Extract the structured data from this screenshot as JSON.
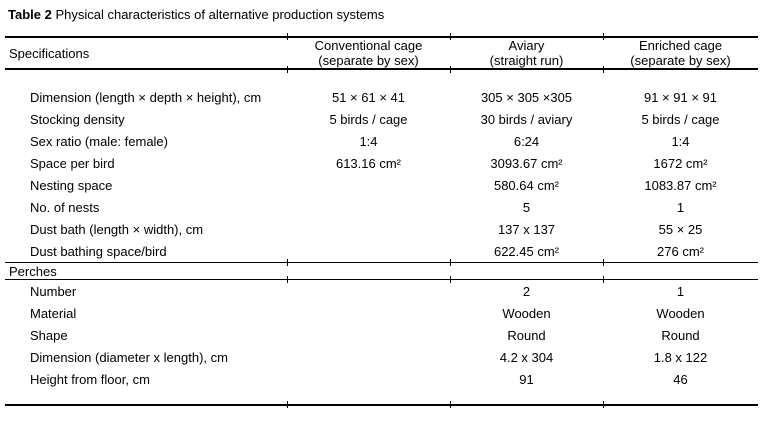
{
  "title": {
    "prefix": "Table 2",
    "rest": " Physical characteristics of alternative production systems"
  },
  "colors": {
    "text": "#000000",
    "background": "#ffffff"
  },
  "table": {
    "header": {
      "col1": "Specifications",
      "col2": [
        "Conventional cage",
        "(separate by sex)"
      ],
      "col3": [
        "Aviary",
        "(straight run)"
      ],
      "col4": [
        "Enriched cage",
        "(separate by sex)"
      ]
    },
    "spec_rows": [
      {
        "label": "Dimension (length × depth × height), cm",
        "v": [
          "51 × 61 × 41",
          "305 × 305 ×305",
          "91 × 91 × 91"
        ]
      },
      {
        "label": "Stocking density",
        "v": [
          "5 birds / cage",
          "30 birds / aviary",
          "5 birds / cage"
        ]
      },
      {
        "label": "Sex ratio (male: female)",
        "v": [
          "1:4",
          "6:24",
          "1:4"
        ]
      },
      {
        "label": "Space per bird",
        "v": [
          "613.16 cm²",
          "3093.67 cm²",
          "1672 cm²"
        ]
      },
      {
        "label": "Nesting space",
        "v": [
          "",
          "580.64 cm²",
          "1083.87 cm²"
        ]
      },
      {
        "label": "No. of nests",
        "v": [
          "",
          "5",
          "1"
        ]
      },
      {
        "label": "Dust bath (length × width), cm",
        "v": [
          "",
          "137 x 137",
          "55 × 25"
        ]
      },
      {
        "label": "Dust bathing space/bird",
        "v": [
          "",
          "622.45 cm²",
          "276 cm²"
        ]
      }
    ],
    "section_label": "Perches",
    "perch_rows": [
      {
        "label": "Number",
        "v": [
          "",
          "2",
          "1"
        ]
      },
      {
        "label": "Material",
        "v": [
          "",
          "Wooden",
          "Wooden"
        ]
      },
      {
        "label": "Shape",
        "v": [
          "",
          "Round",
          "Round"
        ]
      },
      {
        "label": "Dimension (diameter x length), cm",
        "v": [
          "",
          "4.2 x 304",
          "1.8 x 122"
        ]
      },
      {
        "label": "Height from floor, cm",
        "v": [
          "",
          "91",
          "46"
        ]
      }
    ]
  }
}
